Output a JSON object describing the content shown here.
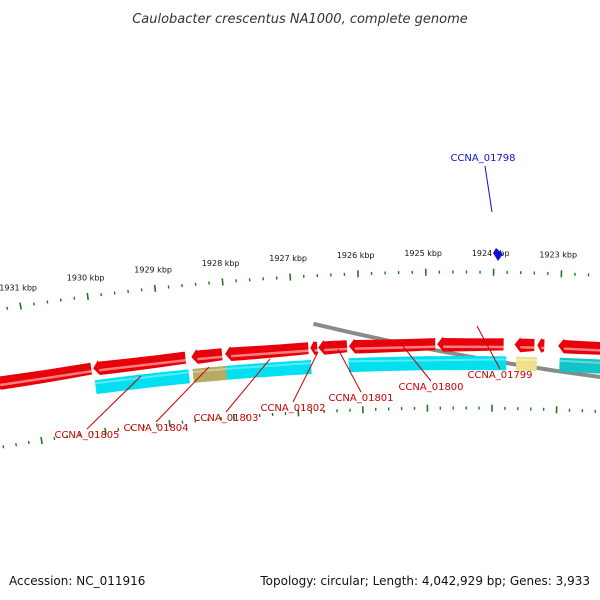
{
  "title": "Caulobacter crescentus NA1000, complete genome",
  "footer": {
    "accession": "Accession: NC_011916",
    "stats": "Topology: circular; Length: 4,042,929 bp; Genes: 3,933"
  },
  "colors": {
    "backbone": "#8a8a8a",
    "forward_gene": "#e8000b",
    "forward_gene_light": "#ff7f7f",
    "reverse_cds": "#00e0f0",
    "reverse_other": "#b5ab63",
    "highlight_label": "#1010cc",
    "label": "#cc0000",
    "tick": "#1e7a1e"
  },
  "ticks": [
    {
      "label": "1931 kbp"
    },
    {
      "label": "1930 kbp"
    },
    {
      "label": "1929 kbp"
    },
    {
      "label": "1928 kbp"
    },
    {
      "label": "1927 kbp"
    },
    {
      "label": "1926 kbp"
    },
    {
      "label": "1925 kbp"
    },
    {
      "label": "1924 kbp"
    },
    {
      "label": "1923 kbp"
    }
  ],
  "gene_labels": [
    {
      "label": "CCNA_01805",
      "highlight": false
    },
    {
      "label": "CCNA_01804",
      "highlight": false
    },
    {
      "label": "CCNA_01803",
      "highlight": false
    },
    {
      "label": "CCNA_01802",
      "highlight": false
    },
    {
      "label": "CCNA_01801",
      "highlight": false
    },
    {
      "label": "CCNA_01800",
      "highlight": false
    },
    {
      "label": "CCNA_01799",
      "highlight": false
    },
    {
      "label": "CCNA_01798",
      "highlight": true
    }
  ]
}
